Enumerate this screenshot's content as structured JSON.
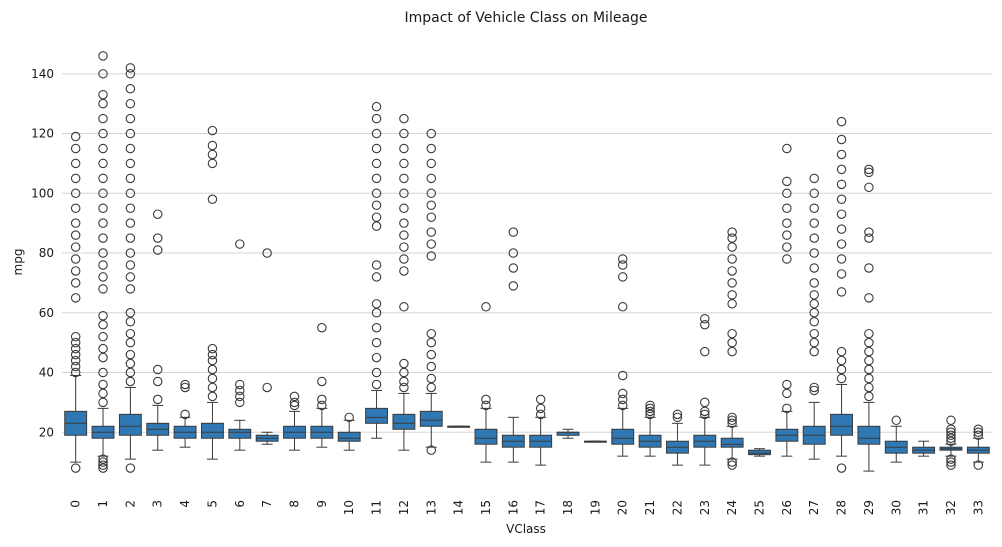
{
  "chart_data": {
    "type": "box",
    "title": "Impact of Vehicle Class on Mileage",
    "xlabel": "VClass",
    "ylabel": "mpg",
    "ylim": [
      0,
      154
    ],
    "yticks": [
      20,
      40,
      60,
      80,
      100,
      120,
      140
    ],
    "grid": "horizontal",
    "box_color": "#2f78b3",
    "categories": [
      "0",
      "1",
      "2",
      "3",
      "4",
      "5",
      "6",
      "7",
      "8",
      "9",
      "10",
      "11",
      "12",
      "13",
      "14",
      "15",
      "16",
      "17",
      "18",
      "19",
      "20",
      "21",
      "22",
      "23",
      "24",
      "25",
      "26",
      "27",
      "28",
      "29",
      "30",
      "31",
      "32",
      "33"
    ],
    "boxes": [
      {
        "min": 10,
        "q1": 19,
        "median": 23,
        "q3": 27,
        "max": 39,
        "fliers": [
          8,
          40,
          42,
          44,
          46,
          48,
          50,
          52,
          65,
          70,
          74,
          78,
          82,
          86,
          90,
          95,
          100,
          105,
          110,
          115,
          119
        ]
      },
      {
        "min": 12,
        "q1": 18,
        "median": 20,
        "q3": 22,
        "max": 28,
        "fliers": [
          8,
          9,
          10,
          11,
          30,
          33,
          36,
          40,
          45,
          48,
          52,
          56,
          59,
          68,
          72,
          76,
          80,
          85,
          90,
          95,
          100,
          105,
          110,
          115,
          120,
          125,
          130,
          133,
          140,
          146
        ]
      },
      {
        "min": 11,
        "q1": 19,
        "median": 22,
        "q3": 26,
        "max": 35,
        "fliers": [
          8,
          37,
          40,
          43,
          46,
          50,
          53,
          57,
          60,
          68,
          72,
          76,
          80,
          85,
          90,
          95,
          100,
          105,
          110,
          115,
          120,
          125,
          130,
          135,
          140,
          142
        ]
      },
      {
        "min": 14,
        "q1": 19,
        "median": 21,
        "q3": 23,
        "max": 29,
        "fliers": [
          31,
          37,
          41,
          81,
          85,
          93
        ]
      },
      {
        "min": 15,
        "q1": 18,
        "median": 20,
        "q3": 22,
        "max": 25,
        "fliers": [
          26,
          35,
          36
        ]
      },
      {
        "min": 11,
        "q1": 18,
        "median": 20,
        "q3": 23,
        "max": 30,
        "fliers": [
          32,
          35,
          38,
          41,
          44,
          46,
          48,
          98,
          110,
          113,
          116,
          121
        ]
      },
      {
        "min": 14,
        "q1": 18,
        "median": 20,
        "q3": 21,
        "max": 24,
        "fliers": [
          30,
          32,
          34,
          36,
          83
        ]
      },
      {
        "min": 16,
        "q1": 17,
        "median": 18,
        "q3": 19,
        "max": 20,
        "fliers": [
          35,
          80
        ]
      },
      {
        "min": 14,
        "q1": 18,
        "median": 20,
        "q3": 22,
        "max": 27,
        "fliers": [
          29,
          30,
          32
        ]
      },
      {
        "min": 15,
        "q1": 18,
        "median": 20,
        "q3": 22,
        "max": 28,
        "fliers": [
          29,
          31,
          37,
          55
        ]
      },
      {
        "min": 14,
        "q1": 17,
        "median": 18,
        "q3": 20,
        "max": 24,
        "fliers": [
          25
        ]
      },
      {
        "min": 18,
        "q1": 23,
        "median": 25,
        "q3": 28,
        "max": 34,
        "fliers": [
          36,
          40,
          45,
          50,
          55,
          60,
          63,
          72,
          76,
          89,
          92,
          96,
          100,
          105,
          110,
          115,
          120,
          125,
          129
        ]
      },
      {
        "min": 14,
        "q1": 21,
        "median": 23,
        "q3": 26,
        "max": 33,
        "fliers": [
          35,
          37,
          40,
          43,
          62,
          74,
          78,
          82,
          86,
          90,
          95,
          100,
          105,
          110,
          115,
          120,
          125
        ]
      },
      {
        "min": 15,
        "q1": 22,
        "median": 24,
        "q3": 27,
        "max": 33,
        "fliers": [
          14,
          35,
          38,
          42,
          46,
          50,
          53,
          79,
          83,
          87,
          92,
          96,
          100,
          105,
          110,
          115,
          120
        ]
      },
      {
        "min": 22,
        "q1": 22,
        "median": 22,
        "q3": 22,
        "max": 22,
        "fliers": []
      },
      {
        "min": 10,
        "q1": 16,
        "median": 18,
        "q3": 21,
        "max": 28,
        "fliers": [
          29,
          31,
          62
        ]
      },
      {
        "min": 10,
        "q1": 15,
        "median": 17,
        "q3": 19,
        "max": 25,
        "fliers": [
          69,
          75,
          80,
          87
        ]
      },
      {
        "min": 9,
        "q1": 15,
        "median": 17,
        "q3": 19,
        "max": 25,
        "fliers": [
          26,
          28,
          31
        ]
      },
      {
        "min": 18,
        "q1": 19,
        "median": 20,
        "q3": 20,
        "max": 21,
        "fliers": []
      },
      {
        "min": 17,
        "q1": 17,
        "median": 17,
        "q3": 17,
        "max": 17,
        "fliers": []
      },
      {
        "min": 12,
        "q1": 16,
        "median": 18,
        "q3": 21,
        "max": 28,
        "fliers": [
          29,
          31,
          33,
          39,
          62,
          72,
          76,
          78
        ]
      },
      {
        "min": 12,
        "q1": 15,
        "median": 17,
        "q3": 19,
        "max": 25,
        "fliers": [
          26,
          27,
          28,
          29
        ]
      },
      {
        "min": 9,
        "q1": 13,
        "median": 15,
        "q3": 17,
        "max": 23,
        "fliers": [
          25,
          26
        ]
      },
      {
        "min": 9,
        "q1": 15,
        "median": 17,
        "q3": 19,
        "max": 25,
        "fliers": [
          26,
          27,
          30,
          47,
          56,
          58
        ]
      },
      {
        "min": 11,
        "q1": 15,
        "median": 16,
        "q3": 18,
        "max": 22,
        "fliers": [
          9,
          10,
          23,
          24,
          25,
          47,
          50,
          53,
          63,
          66,
          70,
          74,
          78,
          82,
          85,
          87
        ]
      },
      {
        "min": 12,
        "q1": 12.5,
        "median": 13,
        "q3": 14,
        "max": 14.5,
        "fliers": []
      },
      {
        "min": 12,
        "q1": 17,
        "median": 19,
        "q3": 21,
        "max": 27,
        "fliers": [
          28,
          33,
          36,
          78,
          82,
          86,
          90,
          95,
          100,
          104,
          115
        ]
      },
      {
        "min": 11,
        "q1": 16,
        "median": 19,
        "q3": 22,
        "max": 30,
        "fliers": [
          34,
          35,
          47,
          50,
          53,
          57,
          60,
          63,
          66,
          70,
          75,
          80,
          85,
          90,
          95,
          100,
          105
        ]
      },
      {
        "min": 12,
        "q1": 19,
        "median": 22,
        "q3": 26,
        "max": 36,
        "fliers": [
          8,
          38,
          41,
          44,
          47,
          67,
          73,
          78,
          83,
          88,
          93,
          98,
          103,
          108,
          113,
          118,
          124
        ]
      },
      {
        "min": 7,
        "q1": 16,
        "median": 18,
        "q3": 22,
        "max": 30,
        "fliers": [
          32,
          35,
          38,
          41,
          44,
          47,
          50,
          53,
          65,
          75,
          85,
          87,
          102,
          107,
          108
        ]
      },
      {
        "min": 10,
        "q1": 13,
        "median": 15,
        "q3": 17,
        "max": 22,
        "fliers": [
          24
        ]
      },
      {
        "min": 12,
        "q1": 13,
        "median": 14,
        "q3": 15,
        "max": 17,
        "fliers": []
      },
      {
        "min": 12,
        "q1": 14,
        "median": 14.5,
        "q3": 15,
        "max": 16,
        "fliers": [
          9,
          10,
          11,
          17,
          18,
          19,
          20,
          21,
          24
        ]
      },
      {
        "min": 10,
        "q1": 13,
        "median": 14,
        "q3": 15,
        "max": 18,
        "fliers": [
          9,
          19,
          20,
          21
        ]
      }
    ]
  }
}
